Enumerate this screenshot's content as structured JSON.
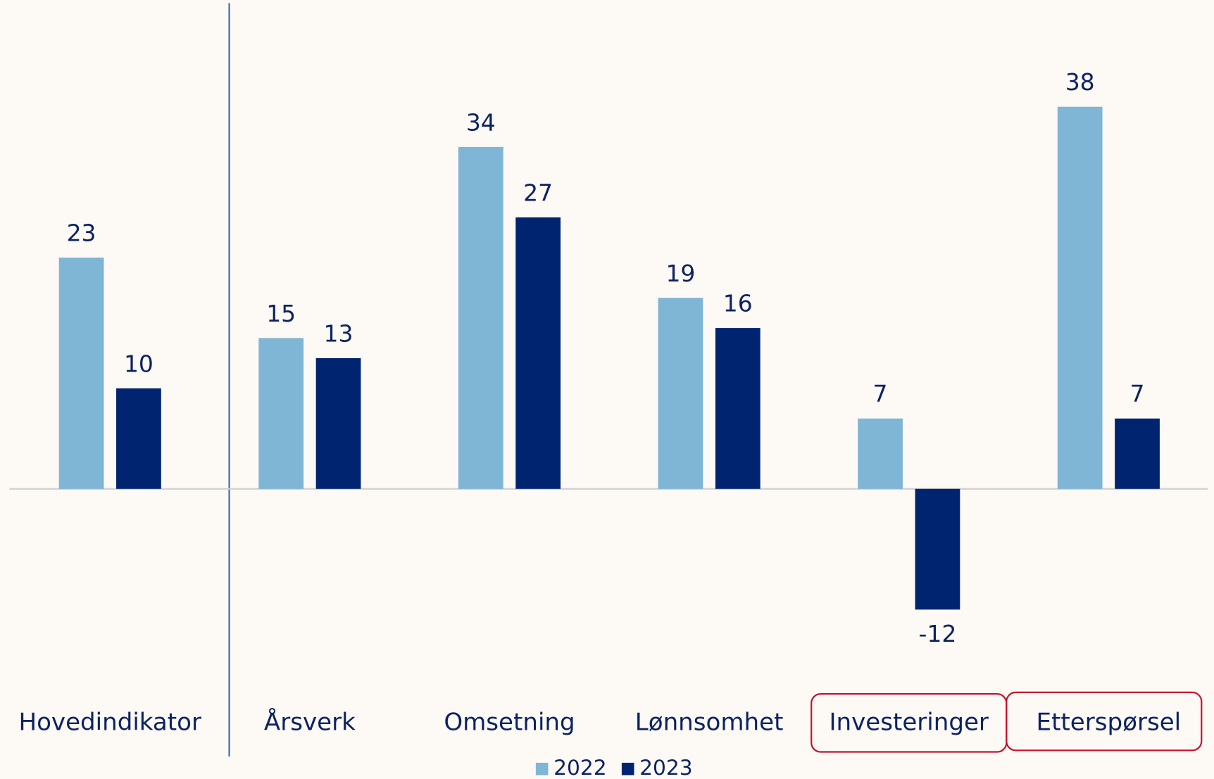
{
  "chart_data": {
    "type": "bar",
    "categories": [
      "Hovedindikator",
      "Årsverk",
      "Omsetning",
      "Lønnsomhet",
      "Investeringer",
      "Etterspørsel"
    ],
    "series": [
      {
        "name": "2022",
        "color": "#7fb5d5",
        "values": [
          23,
          15,
          34,
          19,
          7,
          38
        ]
      },
      {
        "name": "2023",
        "color": "#002470",
        "values": [
          10,
          13,
          27,
          16,
          -12,
          7
        ]
      }
    ],
    "ylim": [
      -20,
      48
    ]
  }
}
